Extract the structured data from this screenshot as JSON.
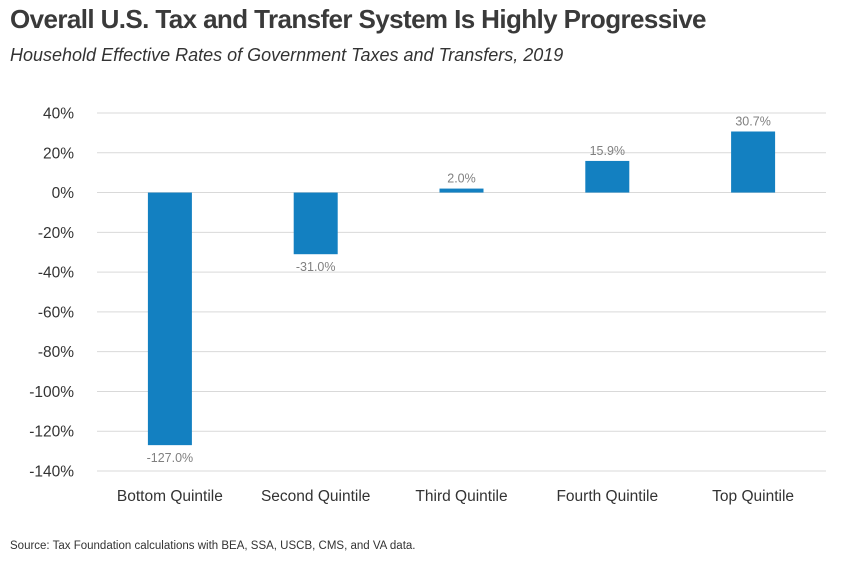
{
  "header": {
    "title": "Overall U.S. Tax and Transfer System Is Highly Progressive",
    "subtitle": "Household Effective Rates of Government Taxes and Transfers, 2019"
  },
  "footer": {
    "source": "Source: Tax Foundation calculations with BEA, SSA, USCB, CMS, and VA data."
  },
  "chart_data": {
    "type": "bar",
    "title": "Overall U.S. Tax and Transfer System Is Highly Progressive",
    "subtitle": "Household Effective Rates of Government Taxes and Transfers, 2019",
    "xlabel": "",
    "ylabel": "",
    "categories": [
      "Bottom Quintile",
      "Second Quintile",
      "Third Quintile",
      "Fourth Quintile",
      "Top Quintile"
    ],
    "values": [
      -127.0,
      -31.0,
      2.0,
      15.9,
      30.7
    ],
    "data_labels": [
      "-127.0%",
      "-31.0%",
      "2.0%",
      "15.9%",
      "30.7%"
    ],
    "ylim": [
      -140,
      40
    ],
    "yticks": [
      40,
      20,
      0,
      -20,
      -40,
      -60,
      -80,
      -100,
      -120,
      -140
    ],
    "ytick_labels": [
      "40%",
      "20%",
      "0%",
      "-20%",
      "-40%",
      "-60%",
      "-80%",
      "-100%",
      "-120%",
      "-140%"
    ],
    "bar_color": "#1380c1",
    "grid": true,
    "legend": "none"
  }
}
